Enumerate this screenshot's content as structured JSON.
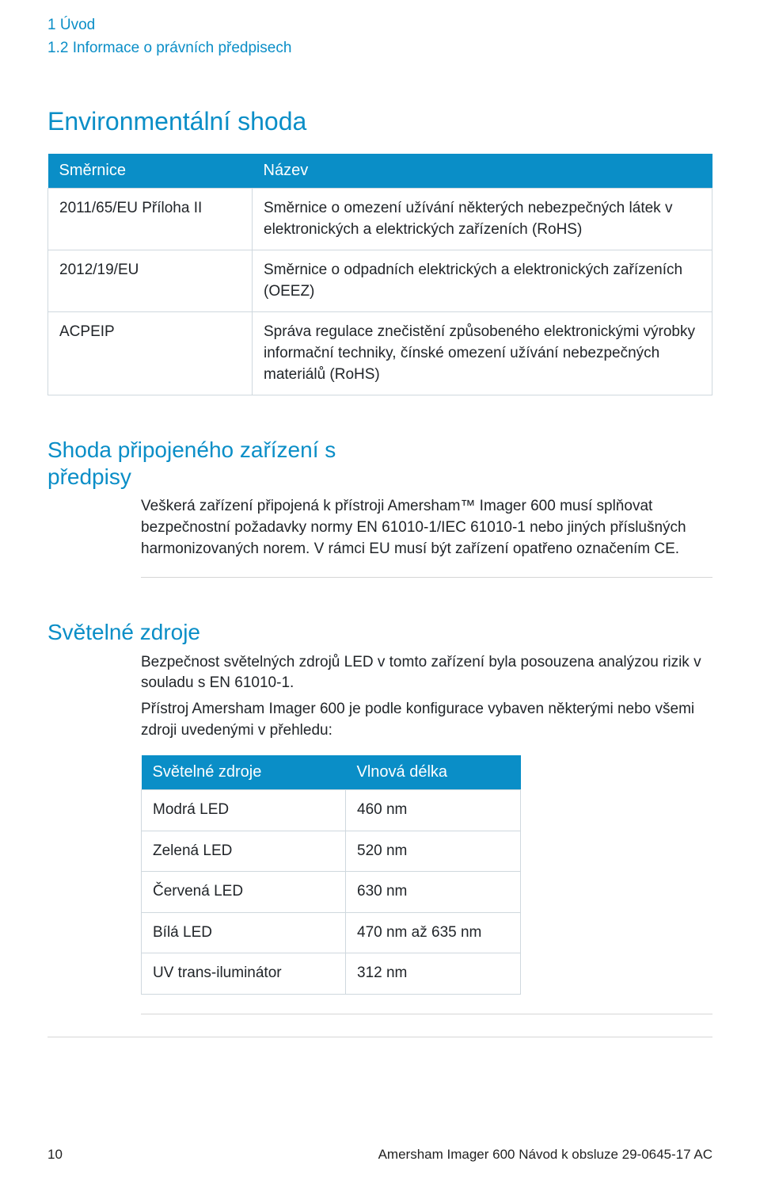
{
  "breadcrumb": {
    "line1": "1 Úvod",
    "line2": "1.2 Informace o právních předpisech"
  },
  "sections": {
    "env": {
      "heading": "Environmentální shoda",
      "table": {
        "headers": {
          "c1": "Směrnice",
          "c2": "Název"
        },
        "rows": [
          {
            "c1": "2011/65/EU Příloha II",
            "c2": "Směrnice o omezení užívání některých nebezpečných látek v elektronických a elektrických zařízeních (RoHS)"
          },
          {
            "c1": "2012/19/EU",
            "c2": "Směrnice o odpadních elektrických a elektronických zařízeních (OEEZ)"
          },
          {
            "c1": "ACPEIP",
            "c2": "Správa regulace znečistění způsobeného elektronickými výrobky informační techniky, čínské omezení užívání nebezpečných materiálů (RoHS)"
          }
        ]
      }
    },
    "compliance": {
      "heading_l1": "Shoda připojeného zařízení s",
      "heading_l2": "předpisy",
      "para": "Veškerá zařízení připojená k přístroji Amersham™ Imager 600 musí splňovat bezpečnostní požadavky normy EN 61010-1/IEC 61010-1 nebo jiných příslušných harmonizovaných norem. V rámci EU musí být zařízení opatřeno označením CE."
    },
    "light": {
      "heading": "Světelné zdroje",
      "para1": "Bezpečnost světelných zdrojů LED v tomto zařízení byla posouzena analýzou rizik v souladu s EN 61010-1.",
      "para2": "Přístroj Amersham Imager 600 je podle konfigurace vybaven některými nebo všemi zdroji uvedenými v přehledu:",
      "table": {
        "headers": {
          "c1": "Světelné zdroje",
          "c2": "Vlnová délka"
        },
        "rows": [
          {
            "c1": "Modrá LED",
            "c2": "460 nm"
          },
          {
            "c1": "Zelená LED",
            "c2": "520 nm"
          },
          {
            "c1": "Červená LED",
            "c2": "630 nm"
          },
          {
            "c1": "Bílá LED",
            "c2": "470 nm až 635 nm"
          },
          {
            "c1": "UV trans-iluminátor",
            "c2": "312 nm"
          }
        ]
      }
    }
  },
  "footer": {
    "page": "10",
    "doc": "Amersham Imager 600 Návod k obsluze 29-0645-17 AC"
  },
  "style": {
    "accent_color": "#0a8ec7",
    "text_color": "#212529",
    "border_color": "#cfd8de",
    "background_color": "#ffffff",
    "body_fontsize": 19,
    "h2_fontsize": 32,
    "h3_fontsize": 28
  }
}
